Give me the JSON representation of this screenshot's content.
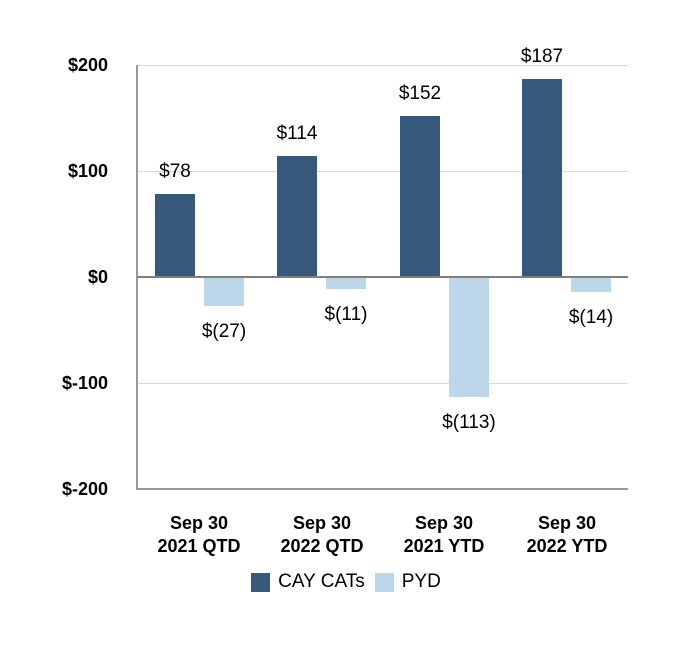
{
  "chart_data": {
    "type": "bar",
    "title": "",
    "xlabel": "",
    "ylabel": "",
    "categories": [
      "Sep 30 2021 QTD",
      "Sep 30 2022 QTD",
      "Sep 30 2021 YTD",
      "Sep 30 2022 YTD"
    ],
    "category_lines": [
      [
        "Sep 30",
        "2021 QTD"
      ],
      [
        "Sep 30",
        "2022 QTD"
      ],
      [
        "Sep 30",
        "2021 YTD"
      ],
      [
        "Sep 30",
        "2022 YTD"
      ]
    ],
    "series": [
      {
        "name": "CAY CATs",
        "color": "#36587A",
        "values": [
          78,
          114,
          152,
          187
        ],
        "data_labels": [
          "$78",
          "$114",
          "$152",
          "$187"
        ]
      },
      {
        "name": "PYD",
        "color": "#BDD7EA",
        "values": [
          -27,
          -11,
          -113,
          -14
        ],
        "data_labels": [
          "$(27)",
          "$(11)",
          "$(113)",
          "$(14)"
        ]
      }
    ],
    "y_axis": {
      "min": -200,
      "max": 200,
      "tick_interval": 100,
      "ticks": [
        {
          "value": 200,
          "label": "$200"
        },
        {
          "value": 100,
          "label": "$100"
        },
        {
          "value": 0,
          "label": "$0"
        },
        {
          "value": -100,
          "label": "$-100"
        },
        {
          "value": -200,
          "label": "$-200"
        }
      ]
    },
    "grid": true,
    "legend_position": "bottom",
    "colors": {
      "grid": "#D9D9D9",
      "zero_line": "#7F7F7F",
      "axis_line": "#999999",
      "text": "#000000",
      "background": "#FFFFFF"
    }
  }
}
